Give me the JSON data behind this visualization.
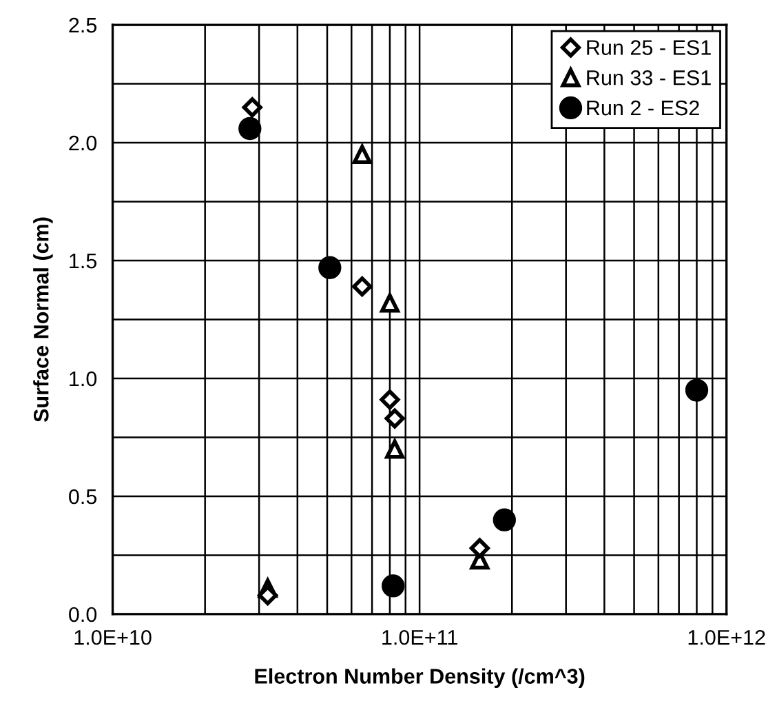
{
  "chart_data": {
    "type": "scatter",
    "xlabel": "Electron Number Density (/cm^3)",
    "ylabel": "Surface Normal (cm)",
    "log": "x",
    "xlim": [
      10000000000.0,
      1000000000000.0
    ],
    "ylim": [
      0,
      2.5
    ],
    "xticks": [
      {
        "value": 10000000000.0,
        "label": "1.0E+10"
      },
      {
        "value": 20000000000.0,
        "label": null
      },
      {
        "value": 30000000000.0,
        "label": null
      },
      {
        "value": 40000000000.0,
        "label": null
      },
      {
        "value": 50000000000.0,
        "label": null
      },
      {
        "value": 60000000000.0,
        "label": null
      },
      {
        "value": 70000000000.0,
        "label": null
      },
      {
        "value": 80000000000.0,
        "label": null
      },
      {
        "value": 90000000000.0,
        "label": null
      },
      {
        "value": 100000000000.0,
        "label": "1.0E+11"
      },
      {
        "value": 200000000000.0,
        "label": null
      },
      {
        "value": 300000000000.0,
        "label": null
      },
      {
        "value": 400000000000.0,
        "label": null
      },
      {
        "value": 500000000000.0,
        "label": null
      },
      {
        "value": 600000000000.0,
        "label": null
      },
      {
        "value": 700000000000.0,
        "label": null
      },
      {
        "value": 800000000000.0,
        "label": null
      },
      {
        "value": 900000000000.0,
        "label": null
      },
      {
        "value": 1000000000000.0,
        "label": "1.0E+12"
      }
    ],
    "yticks": [
      {
        "value": 0,
        "label": "0.0"
      },
      {
        "value": 0.25,
        "label": null
      },
      {
        "value": 0.5,
        "label": "0.5"
      },
      {
        "value": 0.75,
        "label": null
      },
      {
        "value": 1,
        "label": "1.0"
      },
      {
        "value": 1.25,
        "label": null
      },
      {
        "value": 1.5,
        "label": "1.5"
      },
      {
        "value": 1.75,
        "label": null
      },
      {
        "value": 2,
        "label": "2.0"
      },
      {
        "value": 2.25,
        "label": null
      },
      {
        "value": 2.5,
        "label": "2.5"
      }
    ],
    "grid": true,
    "legend": "top right",
    "series": [
      {
        "name": "Run 25 - ES1",
        "color": "#000000",
        "marker": "diamond",
        "x": [
          28500000000.0,
          65000000000.0,
          80000000000.0,
          83000000000.0,
          32000000000.0,
          157000000000.0
        ],
        "values": [
          2.15,
          1.39,
          0.91,
          0.83,
          0.08,
          0.28
        ]
      },
      {
        "name": "Run 33 - ES1",
        "color": "#000000",
        "marker": "triangle",
        "x": [
          65000000000.0,
          80000000000.0,
          83000000000.0,
          32000000000.0,
          157000000000.0
        ],
        "values": [
          1.95,
          1.32,
          0.7,
          0.11,
          0.23
        ]
      },
      {
        "name": "Run 2 - ES2",
        "color": "#000000",
        "marker": "circle",
        "x": [
          28000000000.0,
          51000000000.0,
          82000000000.0,
          189000000000.0,
          800000000000.0
        ],
        "values": [
          2.06,
          1.47,
          0.12,
          0.4,
          0.95
        ]
      }
    ]
  }
}
